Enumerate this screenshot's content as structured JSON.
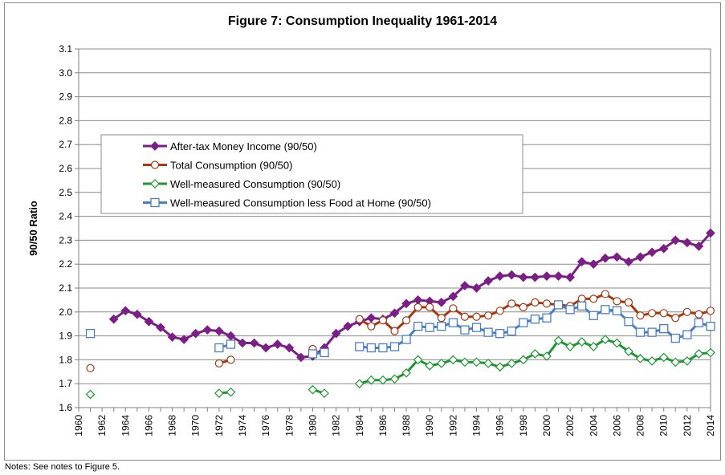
{
  "chart_data": {
    "type": "line",
    "title": "Figure 7: Consumption Inequality 1961-2014",
    "xlabel": "",
    "ylabel": "90/50 Ratio",
    "xlim": [
      1960,
      2014
    ],
    "ylim": [
      1.6,
      3.1
    ],
    "yticks": [
      "1.6",
      "1.7",
      "1.8",
      "1.9",
      "2.0",
      "2.1",
      "2.2",
      "2.3",
      "2.4",
      "2.5",
      "2.6",
      "2.7",
      "2.8",
      "2.9",
      "3.0",
      "3.1"
    ],
    "xticks": [
      "1960",
      "1962",
      "1964",
      "1966",
      "1968",
      "1970",
      "1972",
      "1974",
      "1976",
      "1978",
      "1980",
      "1982",
      "1984",
      "1986",
      "1988",
      "1990",
      "1992",
      "1994",
      "1996",
      "1998",
      "2000",
      "2002",
      "2004",
      "2006",
      "2008",
      "2010",
      "2012",
      "2014"
    ],
    "grid": true,
    "legend_position": "upper-left-inside",
    "series": [
      {
        "name": "After-tax Money Income (90/50)",
        "color": "#7b1f86",
        "marker": "diamond-filled",
        "line_segments": [
          {
            "x": [
              1963,
              1964,
              1965,
              1966,
              1967,
              1968,
              1969,
              1970,
              1971,
              1972,
              1973,
              1974,
              1975,
              1976,
              1977,
              1978,
              1979,
              1980,
              1981,
              1982,
              1983,
              1984,
              1985,
              1986,
              1987,
              1988,
              1989,
              1990,
              1991,
              1992,
              1993,
              1994,
              1995,
              1996,
              1997,
              1998,
              1999,
              2000,
              2001,
              2002,
              2003,
              2004,
              2005,
              2006,
              2007,
              2008,
              2009,
              2010,
              2011,
              2012,
              2013,
              2014
            ],
            "y": [
              1.97,
              2.005,
              1.99,
              1.96,
              1.935,
              1.895,
              1.885,
              1.91,
              1.925,
              1.92,
              1.9,
              1.87,
              1.87,
              1.85,
              1.865,
              1.85,
              1.81,
              1.815,
              1.85,
              1.91,
              1.94,
              1.96,
              1.975,
              1.97,
              1.995,
              2.035,
              2.05,
              2.045,
              2.04,
              2.065,
              2.11,
              2.1,
              2.13,
              2.15,
              2.155,
              2.145,
              2.145,
              2.15,
              2.15,
              2.145,
              2.21,
              2.2,
              2.225,
              2.23,
              2.21,
              2.23,
              2.25,
              2.265,
              2.3,
              2.29,
              2.275,
              2.33
            ]
          }
        ],
        "markers_only": []
      },
      {
        "name": "Total Consumption (90/50)",
        "color": "#a53a12",
        "marker": "circle-open",
        "line_segments": [
          {
            "x": [
              1972,
              1973
            ],
            "y": [
              1.785,
              1.8
            ]
          },
          {
            "x": [
              1984,
              1985,
              1986,
              1987,
              1988,
              1989,
              1990,
              1991,
              1992,
              1993,
              1994,
              1995,
              1996,
              1997,
              1998,
              1999,
              2000,
              2001,
              2002,
              2003,
              2004,
              2005,
              2006,
              2007,
              2008,
              2009,
              2010,
              2011,
              2012,
              2013,
              2014
            ],
            "y": [
              1.97,
              1.94,
              1.965,
              1.92,
              1.965,
              2.02,
              2.02,
              1.975,
              2.015,
              1.98,
              1.98,
              1.985,
              2.005,
              2.035,
              2.02,
              2.04,
              2.035,
              2.03,
              2.025,
              2.055,
              2.055,
              2.075,
              2.045,
              2.04,
              1.985,
              1.995,
              1.995,
              1.975,
              2.0,
              1.99,
              2.005
            ]
          }
        ],
        "markers_only": [
          {
            "x": 1961,
            "y": 1.765
          },
          {
            "x": 1980,
            "y": 1.845
          }
        ]
      },
      {
        "name": "Well-measured Consumption (90/50)",
        "color": "#1e9632",
        "marker": "diamond-open",
        "line_segments": [
          {
            "x": [
              1972,
              1973
            ],
            "y": [
              1.66,
              1.665
            ]
          },
          {
            "x": [
              1980,
              1981
            ],
            "y": [
              1.675,
              1.66
            ]
          },
          {
            "x": [
              1984,
              1985,
              1986,
              1987,
              1988,
              1989,
              1990,
              1991,
              1992,
              1993,
              1994,
              1995,
              1996,
              1997,
              1998,
              1999,
              2000,
              2001,
              2002,
              2003,
              2004,
              2005,
              2006,
              2007,
              2008,
              2009,
              2010,
              2011,
              2012,
              2013,
              2014
            ],
            "y": [
              1.7,
              1.715,
              1.715,
              1.72,
              1.745,
              1.8,
              1.775,
              1.785,
              1.8,
              1.79,
              1.79,
              1.785,
              1.77,
              1.785,
              1.8,
              1.825,
              1.815,
              1.88,
              1.855,
              1.875,
              1.855,
              1.885,
              1.87,
              1.835,
              1.805,
              1.795,
              1.81,
              1.79,
              1.795,
              1.825,
              1.83
            ]
          }
        ],
        "markers_only": [
          {
            "x": 1961,
            "y": 1.655
          }
        ]
      },
      {
        "name": "Well-measured Consumption less Food at Home (90/50)",
        "color": "#4a7fc4",
        "marker": "square-open",
        "line_segments": [
          {
            "x": [
              1972,
              1973
            ],
            "y": [
              1.85,
              1.865
            ]
          },
          {
            "x": [
              1980,
              1981
            ],
            "y": [
              1.825,
              1.83
            ]
          },
          {
            "x": [
              1984,
              1985,
              1986,
              1987,
              1988,
              1989,
              1990,
              1991,
              1992,
              1993,
              1994,
              1995,
              1996,
              1997,
              1998,
              1999,
              2000,
              2001,
              2002,
              2003,
              2004,
              2005,
              2006,
              2007,
              2008,
              2009,
              2010,
              2011,
              2012,
              2013,
              2014
            ],
            "y": [
              1.855,
              1.85,
              1.85,
              1.855,
              1.885,
              1.94,
              1.935,
              1.94,
              1.955,
              1.925,
              1.935,
              1.915,
              1.91,
              1.92,
              1.955,
              1.97,
              1.975,
              2.03,
              2.01,
              2.025,
              1.985,
              2.01,
              2.005,
              1.96,
              1.915,
              1.915,
              1.93,
              1.89,
              1.905,
              1.955,
              1.94
            ]
          }
        ],
        "markers_only": [
          {
            "x": 1961,
            "y": 1.91
          }
        ]
      }
    ]
  },
  "notes": "Notes:  See notes to Figure 5."
}
